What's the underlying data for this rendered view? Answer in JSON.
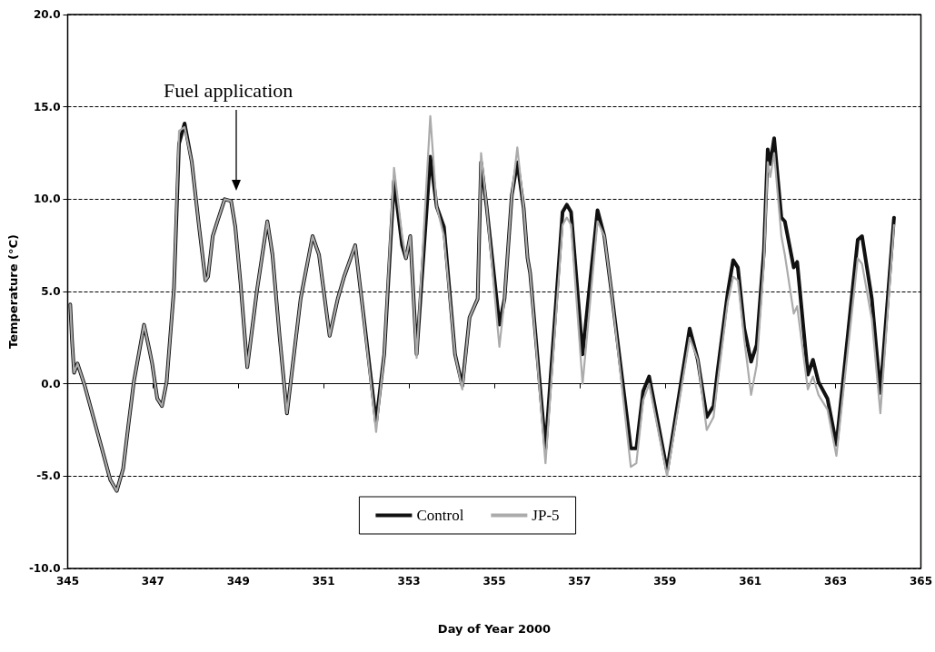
{
  "chart_data": {
    "type": "line",
    "xlabel": "Day of Year 2000",
    "ylabel": "Temperature (°C)",
    "x": [
      345.06,
      345.1,
      345.15,
      345.23,
      345.4,
      345.8,
      346.0,
      346.15,
      346.3,
      346.42,
      346.55,
      346.79,
      346.91,
      346.98,
      347.1,
      347.21,
      347.32,
      347.49,
      347.61,
      347.74,
      347.91,
      348.08,
      348.23,
      348.29,
      348.4,
      348.51,
      348.68,
      348.83,
      348.93,
      349.05,
      349.21,
      349.44,
      349.68,
      349.8,
      349.97,
      350.14,
      350.46,
      350.74,
      350.89,
      351.14,
      351.33,
      351.48,
      351.74,
      351.89,
      352.23,
      352.42,
      352.65,
      352.84,
      352.93,
      353.03,
      353.18,
      353.5,
      353.65,
      353.82,
      354.08,
      354.25,
      354.42,
      354.61,
      354.69,
      354.82,
      355.12,
      355.24,
      355.41,
      355.54,
      355.69,
      355.78,
      355.84,
      356.2,
      356.6,
      356.7,
      356.8,
      357.07,
      357.42,
      357.58,
      357.73,
      358.2,
      358.33,
      358.49,
      358.63,
      359.05,
      359.58,
      359.77,
      359.98,
      360.14,
      360.23,
      360.47,
      360.6,
      360.71,
      360.86,
      361.02,
      361.15,
      361.32,
      361.41,
      361.47,
      361.56,
      361.73,
      361.81,
      362.02,
      362.1,
      362.35,
      362.47,
      362.6,
      362.81,
      363.02,
      363.52,
      363.62,
      363.85,
      364.05,
      364.37
    ],
    "series": [
      {
        "name": "Control",
        "color": "#111111",
        "values": [
          4.3,
          2.4,
          0.6,
          1.1,
          -0.1,
          -3.5,
          -5.2,
          -5.8,
          -4.6,
          -2.3,
          0.1,
          3.2,
          1.9,
          1.1,
          -0.8,
          -1.2,
          0.1,
          5.1,
          13.0,
          14.1,
          12.0,
          8.5,
          5.6,
          5.8,
          8.0,
          8.8,
          10.0,
          9.9,
          8.5,
          5.5,
          0.9,
          5.1,
          8.8,
          7.0,
          2.5,
          -1.6,
          4.6,
          8.0,
          7.0,
          2.6,
          4.6,
          5.8,
          7.5,
          4.6,
          -2.1,
          1.6,
          11.0,
          7.5,
          6.8,
          8.0,
          1.6,
          12.3,
          9.6,
          8.5,
          1.6,
          -0.1,
          3.6,
          4.6,
          12.0,
          9.6,
          3.2,
          4.6,
          10.2,
          12.0,
          9.5,
          6.8,
          6.0,
          -3.5,
          9.3,
          9.7,
          9.3,
          1.6,
          9.4,
          8.0,
          5.3,
          -3.5,
          -3.5,
          -0.4,
          0.4,
          -4.7,
          3.0,
          1.3,
          -1.8,
          -1.2,
          0.6,
          4.9,
          6.7,
          6.3,
          3.0,
          1.2,
          2.1,
          7.2,
          12.7,
          11.9,
          13.3,
          9.0,
          8.8,
          6.3,
          6.6,
          0.5,
          1.3,
          0.1,
          -0.8,
          -3.3,
          7.8,
          8.0,
          4.6,
          -0.5,
          9.0
        ]
      },
      {
        "name": "JP-5",
        "color": "#ababab",
        "values": [
          4.3,
          2.4,
          0.6,
          1.1,
          -0.1,
          -3.5,
          -5.2,
          -5.8,
          -4.6,
          -2.3,
          0.1,
          3.2,
          1.9,
          1.1,
          -0.8,
          -1.2,
          0.1,
          5.1,
          13.7,
          13.9,
          12.0,
          8.5,
          5.6,
          5.8,
          8.0,
          8.8,
          10.0,
          9.9,
          8.5,
          5.5,
          0.9,
          5.1,
          8.8,
          7.0,
          2.5,
          -1.6,
          4.6,
          8.0,
          7.0,
          2.6,
          4.6,
          5.8,
          7.5,
          4.6,
          -2.6,
          1.6,
          11.7,
          8.0,
          6.8,
          8.0,
          1.4,
          14.5,
          9.6,
          8.0,
          1.6,
          -0.3,
          3.6,
          4.6,
          12.5,
          9.6,
          2.0,
          4.6,
          10.2,
          12.8,
          9.5,
          6.8,
          6.0,
          -4.3,
          8.6,
          9.0,
          8.6,
          0.0,
          8.8,
          8.0,
          5.3,
          -4.5,
          -4.3,
          -0.9,
          0.0,
          -5.0,
          2.5,
          1.3,
          -2.5,
          -1.8,
          0.0,
          4.4,
          5.8,
          5.6,
          2.4,
          -0.6,
          1.0,
          6.5,
          12.0,
          11.2,
          12.5,
          8.0,
          7.0,
          3.8,
          4.2,
          -0.3,
          0.4,
          -0.6,
          -1.4,
          -3.9,
          6.8,
          6.5,
          3.5,
          -1.6,
          8.6
        ]
      }
    ],
    "xlim": [
      345,
      365
    ],
    "xticks": [
      345,
      347,
      349,
      351,
      353,
      355,
      357,
      359,
      361,
      363,
      365
    ],
    "ylim": [
      -10,
      20
    ],
    "yticks": [
      {
        "value": -10,
        "label": "-10.0"
      },
      {
        "value": -5,
        "label": "-5.0"
      },
      {
        "value": 0,
        "label": "0.0"
      },
      {
        "value": 5,
        "label": "5.0"
      },
      {
        "value": 10,
        "label": "10.0"
      },
      {
        "value": 15,
        "label": "15.0"
      },
      {
        "value": 20,
        "label": "20.0"
      }
    ],
    "grid": "y",
    "legend": "bottom",
    "marker": "none",
    "line_style": "solid",
    "annotations": [
      "Fuel application"
    ]
  }
}
